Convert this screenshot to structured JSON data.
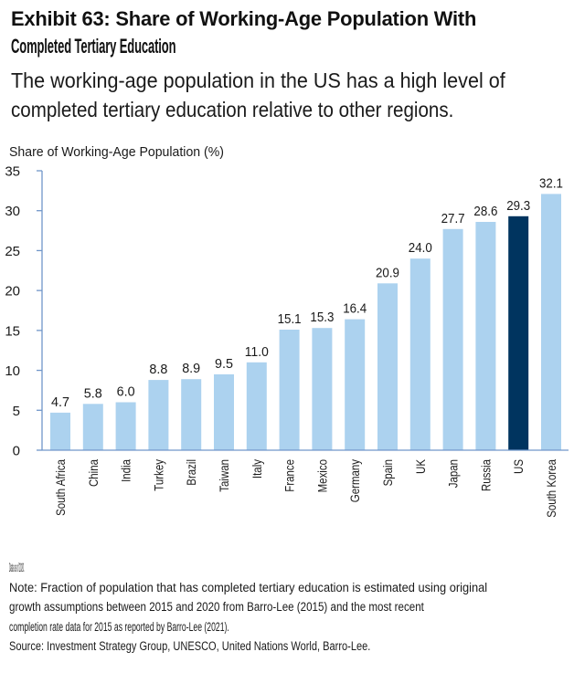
{
  "header": {
    "title_lines": [
      "Exhibit 63: Share of Working-Age Population With",
      "Completed Tertiary Education"
    ],
    "subtitle_lines": [
      "The working-age population in the US has a high level of",
      "completed tertiary education relative to other regions."
    ]
  },
  "chart_data": {
    "type": "bar",
    "title": "Exhibit 63: Share of Working-Age Population With Completed Tertiary Education",
    "ylabel": "Share of Working-Age Population (%)",
    "xlabel": "",
    "ylim": [
      0,
      35
    ],
    "yticks": [
      0,
      5,
      10,
      15,
      20,
      25,
      30,
      35
    ],
    "grid": false,
    "categories": [
      "South Africa",
      "China",
      "India",
      "Turkey",
      "Brazil",
      "Taiwan",
      "Italy",
      "France",
      "Mexico",
      "Germany",
      "Spain",
      "UK",
      "Japan",
      "Russia",
      "US",
      "South Korea"
    ],
    "values": [
      4.7,
      5.8,
      6.0,
      8.8,
      8.9,
      9.5,
      11.0,
      15.1,
      15.3,
      16.4,
      20.9,
      24.0,
      27.7,
      28.6,
      29.3,
      32.1
    ],
    "value_labels": [
      "4.7",
      "5.8",
      "6.0",
      "8.8",
      "8.9",
      "9.5",
      "11.0",
      "15.1",
      "15.3",
      "16.4",
      "20.9",
      "24.0",
      "27.7",
      "28.6",
      "29.3",
      "32.1"
    ],
    "highlight": "US",
    "colors": {
      "bar": "#acd2ef",
      "highlight": "#00345f",
      "axis": "#7096c9",
      "text": "#1a1a1a"
    }
  },
  "notes": {
    "lines": [
      "Data as of 2020.",
      "Note: Fraction of population that has completed tertiary education is estimated using original",
      "growth assumptions between 2015 and 2020 from Barro-Lee (2015) and the most recent",
      "completion rate data for 2015 as reported by Barro-Lee (2021).",
      "Source: Investment Strategy Group, UNESCO, United Nations World, Barro-Lee."
    ]
  }
}
